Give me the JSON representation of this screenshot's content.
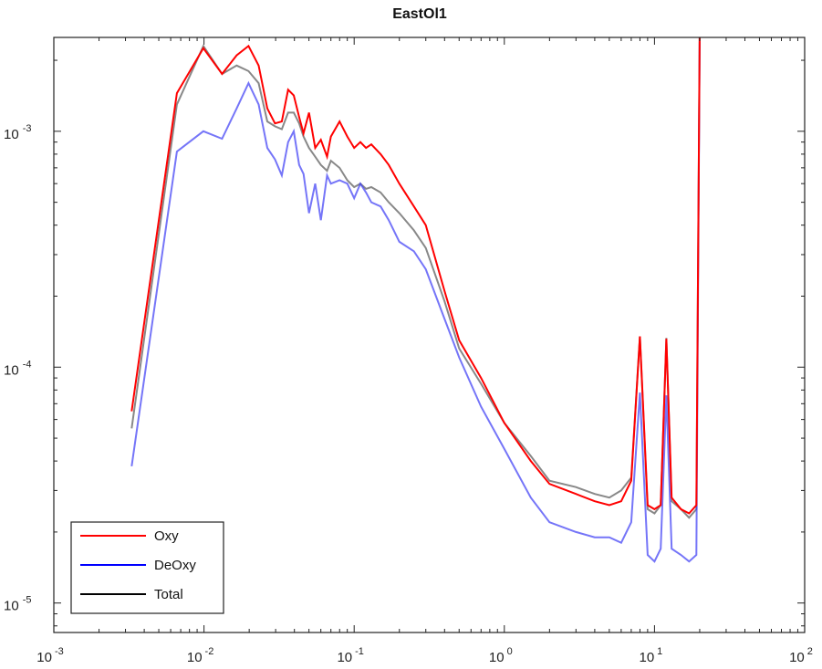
{
  "chart_data": {
    "type": "line",
    "title": "EastOl1",
    "xscale": "log",
    "yscale": "log",
    "xlim": [
      0.001,
      100
    ],
    "ylim": [
      7.5e-06,
      0.0025
    ],
    "grid": false,
    "legend_position": "bottom-left",
    "x_ticks": [
      {
        "base": "10",
        "exp": "-3"
      },
      {
        "base": "10",
        "exp": "-2"
      },
      {
        "base": "10",
        "exp": "-1"
      },
      {
        "base": "10",
        "exp": "0"
      },
      {
        "base": "10",
        "exp": "1"
      },
      {
        "base": "10",
        "exp": "2"
      }
    ],
    "y_ticks": [
      {
        "base": "10",
        "exp": "-5"
      },
      {
        "base": "10",
        "exp": "-4"
      },
      {
        "base": "10",
        "exp": "-3"
      }
    ],
    "series": [
      {
        "name": "Oxy",
        "color": "#ff0000",
        "x": [
          0.0033,
          0.0066,
          0.0099,
          0.0132,
          0.0165,
          0.0198,
          0.0231,
          0.0264,
          0.0297,
          0.033,
          0.0363,
          0.0396,
          0.043,
          0.046,
          0.05,
          0.055,
          0.06,
          0.066,
          0.07,
          0.08,
          0.09,
          0.1,
          0.11,
          0.12,
          0.13,
          0.15,
          0.17,
          0.2,
          0.25,
          0.3,
          0.4,
          0.5,
          0.7,
          1.0,
          1.5,
          2.0,
          3.0,
          4.0,
          5.0,
          6.0,
          7.0,
          8.0,
          9.0,
          10.0,
          11.0,
          12.0,
          13.0,
          15.0,
          17.0,
          19.0,
          20.0
        ],
        "y": [
          6.5e-05,
          0.00145,
          0.00225,
          0.00175,
          0.0021,
          0.0023,
          0.0019,
          0.00125,
          0.00108,
          0.0011,
          0.0015,
          0.00142,
          0.00115,
          0.00098,
          0.0012,
          0.00085,
          0.00092,
          0.00078,
          0.00095,
          0.0011,
          0.00095,
          0.00085,
          0.0009,
          0.00085,
          0.00088,
          0.0008,
          0.00072,
          0.0006,
          0.00048,
          0.0004,
          0.00021,
          0.00013,
          9e-05,
          5.8e-05,
          4e-05,
          3.2e-05,
          2.9e-05,
          2.7e-05,
          2.6e-05,
          2.7e-05,
          3.3e-05,
          0.000135,
          2.6e-05,
          2.5e-05,
          2.6e-05,
          0.000132,
          2.8e-05,
          2.5e-05,
          2.4e-05,
          2.6e-05,
          0.0025
        ]
      },
      {
        "name": "DeOxy",
        "color": "#3b3bf5",
        "x": [
          0.0033,
          0.0066,
          0.0099,
          0.0132,
          0.0165,
          0.0198,
          0.0231,
          0.0264,
          0.0297,
          0.033,
          0.0363,
          0.0396,
          0.043,
          0.046,
          0.05,
          0.055,
          0.06,
          0.066,
          0.07,
          0.08,
          0.09,
          0.1,
          0.11,
          0.12,
          0.13,
          0.15,
          0.17,
          0.2,
          0.25,
          0.3,
          0.4,
          0.5,
          0.7,
          1.0,
          1.5,
          2.0,
          3.0,
          4.0,
          5.0,
          6.0,
          7.0,
          8.0,
          9.0,
          10.0,
          11.0,
          12.0,
          13.0,
          15.0,
          17.0,
          19.0,
          20.0
        ],
        "y": [
          3.8e-05,
          0.00082,
          0.001,
          0.00093,
          0.00125,
          0.0016,
          0.0013,
          0.00085,
          0.00076,
          0.00065,
          0.0009,
          0.001,
          0.00072,
          0.00066,
          0.00045,
          0.0006,
          0.00042,
          0.00065,
          0.0006,
          0.00062,
          0.0006,
          0.00052,
          0.0006,
          0.00055,
          0.0005,
          0.00048,
          0.00042,
          0.00034,
          0.00031,
          0.00026,
          0.00016,
          0.00011,
          6.8e-05,
          4.5e-05,
          2.8e-05,
          2.2e-05,
          2e-05,
          1.9e-05,
          1.9e-05,
          1.8e-05,
          2.2e-05,
          7.8e-05,
          1.6e-05,
          1.5e-05,
          1.7e-05,
          7.6e-05,
          1.7e-05,
          1.6e-05,
          1.5e-05,
          1.6e-05,
          0.0024
        ]
      },
      {
        "name": "Total",
        "color": "#555555",
        "x": [
          0.0033,
          0.0066,
          0.0099,
          0.0132,
          0.0165,
          0.0198,
          0.0231,
          0.0264,
          0.0297,
          0.033,
          0.0363,
          0.0396,
          0.043,
          0.046,
          0.05,
          0.055,
          0.06,
          0.066,
          0.07,
          0.08,
          0.09,
          0.1,
          0.11,
          0.12,
          0.13,
          0.15,
          0.17,
          0.2,
          0.25,
          0.3,
          0.4,
          0.5,
          0.7,
          1.0,
          1.5,
          2.0,
          3.0,
          4.0,
          5.0,
          6.0,
          7.0,
          8.0,
          9.0,
          10.0,
          11.0,
          12.0,
          13.0,
          15.0,
          17.0,
          19.0,
          20.0
        ],
        "y": [
          5.5e-05,
          0.0013,
          0.0023,
          0.00175,
          0.0019,
          0.0018,
          0.0016,
          0.0011,
          0.00105,
          0.00102,
          0.0012,
          0.0012,
          0.00108,
          0.00095,
          0.00085,
          0.00078,
          0.00072,
          0.00068,
          0.00075,
          0.0007,
          0.00062,
          0.00058,
          0.0006,
          0.00057,
          0.00058,
          0.00055,
          0.0005,
          0.00045,
          0.00038,
          0.00032,
          0.00019,
          0.00012,
          8.5e-05,
          5.8e-05,
          4.2e-05,
          3.3e-05,
          3.1e-05,
          2.9e-05,
          2.8e-05,
          3e-05,
          3.4e-05,
          0.000135,
          2.5e-05,
          2.4e-05,
          2.6e-05,
          0.000133,
          2.7e-05,
          2.5e-05,
          2.3e-05,
          2.5e-05,
          0.0025
        ]
      }
    ],
    "legend": [
      {
        "label": "Oxy",
        "color": "#ff0000"
      },
      {
        "label": "DeOxy",
        "color": "#0000ff"
      },
      {
        "label": "Total",
        "color": "#000000"
      }
    ]
  }
}
